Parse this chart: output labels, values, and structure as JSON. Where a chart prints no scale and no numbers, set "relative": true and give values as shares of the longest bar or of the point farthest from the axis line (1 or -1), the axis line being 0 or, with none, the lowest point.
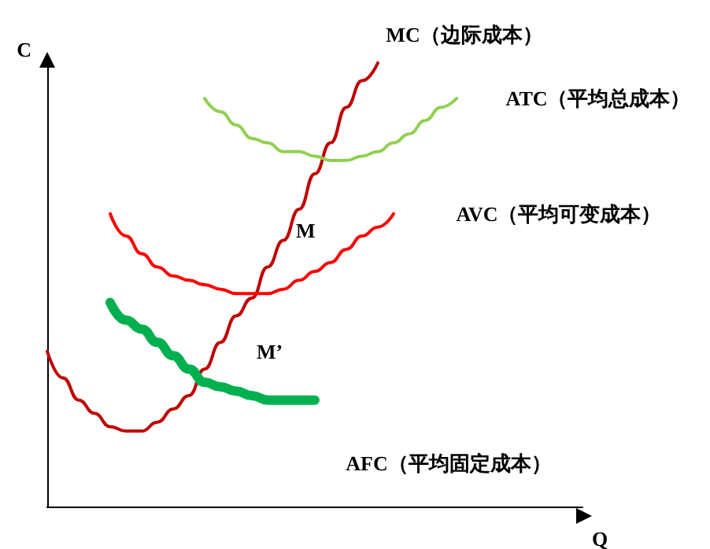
{
  "chart_data": {
    "type": "line",
    "relative": true,
    "xlabel": "Q",
    "ylabel": "C",
    "legend": false,
    "grid": false,
    "marker": "none",
    "categories": [
      null,
      null,
      null,
      null,
      null,
      null,
      null,
      null,
      null,
      null,
      null,
      null,
      null,
      null,
      null,
      null,
      null,
      null,
      null,
      null,
      null,
      null,
      null,
      null,
      null,
      null,
      null,
      null,
      null,
      null,
      null,
      null,
      null,
      null,
      null
    ],
    "series": [
      {
        "name": "MC（边际成本）",
        "color": "#c00000",
        "values": [
          0.35,
          0.29,
          0.24,
          0.21,
          0.18,
          0.17,
          0.17,
          0.19,
          0.22,
          0.25,
          0.31,
          0.37,
          0.43,
          0.47,
          0.54,
          0.6,
          0.67,
          0.75,
          0.82,
          0.9,
          0.96,
          1.0,
          null,
          null,
          null,
          null,
          null,
          null,
          null,
          null,
          null,
          null,
          null,
          null,
          null
        ]
      },
      {
        "name": "ATC（平均总成本）",
        "color": "#92d050",
        "values": [
          null,
          null,
          null,
          null,
          null,
          null,
          null,
          null,
          null,
          null,
          0.92,
          0.89,
          0.86,
          0.83,
          0.82,
          0.8,
          0.8,
          0.79,
          0.78,
          0.78,
          0.79,
          0.8,
          0.82,
          0.84,
          0.87,
          0.9,
          0.92,
          null,
          null,
          null,
          null,
          null,
          null,
          null,
          null
        ]
      },
      {
        "name": "AVC（平均可变成本）",
        "color": "#ff0000",
        "values": [
          null,
          null,
          null,
          null,
          0.66,
          0.61,
          0.57,
          0.54,
          0.52,
          0.51,
          0.5,
          0.49,
          0.48,
          0.48,
          0.48,
          0.49,
          0.51,
          0.53,
          0.55,
          0.58,
          0.61,
          0.63,
          0.66,
          null,
          null,
          null,
          null,
          null,
          null,
          null,
          null,
          null,
          null,
          null,
          null
        ]
      },
      {
        "name": "AFC（平均固定成本）",
        "color": "#00b050",
        "values": [
          null,
          null,
          null,
          null,
          0.46,
          0.42,
          0.4,
          0.37,
          0.34,
          0.31,
          0.28,
          0.27,
          0.26,
          0.25,
          0.24,
          0.24,
          0.24,
          0.24,
          null,
          null,
          null,
          null,
          null,
          null,
          null,
          null,
          null,
          null,
          null,
          null,
          null,
          null,
          null,
          null,
          null
        ]
      }
    ],
    "annotations": [
      "M",
      "M’"
    ]
  }
}
